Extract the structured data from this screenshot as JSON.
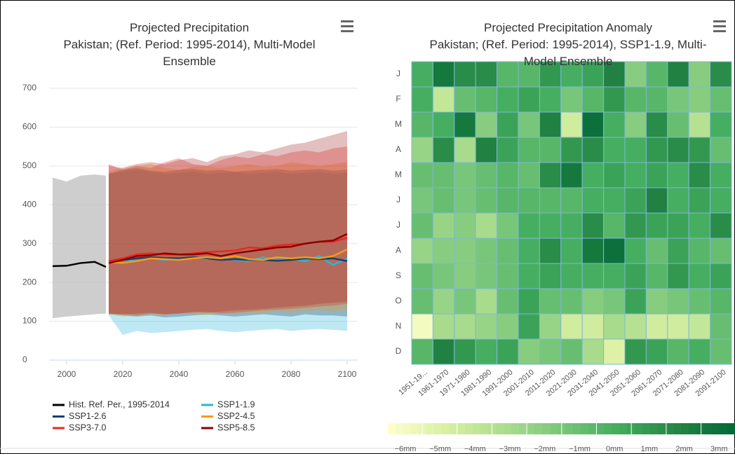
{
  "chart_data": [
    {
      "type": "line",
      "title": "Projected Precipitation",
      "subtitle": "Pakistan; (Ref. Period: 1995-2014), Multi-Model Ensemble",
      "xlim": [
        1994,
        2103
      ],
      "xticks": [
        2000,
        2020,
        2040,
        2060,
        2080,
        2100
      ],
      "ylim": [
        0,
        700
      ],
      "yticks": [
        0,
        100,
        200,
        300,
        400,
        500,
        600,
        700
      ],
      "grid": true,
      "x": [
        2015,
        2020,
        2025,
        2030,
        2035,
        2040,
        2045,
        2050,
        2055,
        2060,
        2065,
        2070,
        2075,
        2080,
        2085,
        2090,
        2095,
        2100
      ],
      "series": [
        {
          "name": "Hist. Ref. Per., 1995-2014",
          "color": "#000000",
          "band_color": "#bdbdbd",
          "x": [
            1995,
            2000,
            2005,
            2010,
            2014
          ],
          "values": [
            242,
            243,
            250,
            253,
            240
          ],
          "low": [
            108,
            112,
            115,
            118,
            120
          ],
          "high": [
            470,
            460,
            475,
            478,
            475
          ]
        },
        {
          "name": "SSP1-1.9",
          "color": "#29b6d9",
          "band_color": "#29b6d9",
          "values": [
            250,
            258,
            255,
            262,
            258,
            262,
            265,
            260,
            262,
            258,
            255,
            265,
            258,
            262,
            255,
            268,
            245,
            262
          ],
          "low": [
            115,
            65,
            75,
            70,
            72,
            75,
            78,
            80,
            75,
            72,
            75,
            78,
            80,
            75,
            78,
            80,
            78,
            75
          ],
          "high": [
            480,
            485,
            490,
            485,
            480,
            482,
            485,
            480,
            482,
            485,
            480,
            482,
            485,
            480,
            482,
            485,
            480,
            482
          ]
        },
        {
          "name": "SSP1-2.6",
          "color": "#1a3e6e",
          "band_color": "#1a3e6e",
          "values": [
            255,
            258,
            262,
            265,
            263,
            262,
            265,
            262,
            258,
            260,
            258,
            258,
            256,
            258,
            262,
            260,
            262,
            255
          ],
          "low": [
            118,
            115,
            112,
            115,
            110,
            112,
            115,
            118,
            115,
            112,
            115,
            118,
            115,
            112,
            118,
            115,
            115,
            112
          ],
          "high": [
            480,
            490,
            495,
            488,
            485,
            490,
            492,
            488,
            490,
            485,
            488,
            490,
            492,
            488,
            490,
            492,
            488,
            490
          ]
        },
        {
          "name": "SSP2-4.5",
          "color": "#f39c12",
          "band_color": "#f39c12",
          "values": [
            252,
            250,
            255,
            262,
            260,
            258,
            262,
            265,
            262,
            268,
            260,
            258,
            265,
            262,
            265,
            262,
            268,
            285
          ],
          "low": [
            118,
            112,
            115,
            118,
            115,
            120,
            118,
            115,
            120,
            118,
            122,
            120,
            125,
            122,
            125,
            128,
            125,
            128
          ],
          "high": [
            485,
            495,
            500,
            505,
            495,
            490,
            498,
            500,
            495,
            500,
            505,
            498,
            500,
            510,
            505,
            500,
            505,
            510
          ]
        },
        {
          "name": "SSP3-7.0",
          "color": "#e8281e",
          "band_color": "#e8281e",
          "values": [
            255,
            262,
            272,
            275,
            272,
            272,
            275,
            278,
            280,
            282,
            290,
            288,
            295,
            298,
            300,
            305,
            305,
            315
          ],
          "low": [
            120,
            118,
            115,
            120,
            118,
            120,
            122,
            125,
            120,
            122,
            125,
            128,
            130,
            132,
            135,
            138,
            140,
            145
          ],
          "high": [
            505,
            490,
            500,
            495,
            510,
            520,
            505,
            500,
            515,
            525,
            520,
            530,
            525,
            535,
            540,
            535,
            545,
            550
          ]
        },
        {
          "name": "SSP5-8.5",
          "color": "#8b0000",
          "band_color": "#a52a2a",
          "values": [
            250,
            258,
            268,
            270,
            275,
            272,
            272,
            275,
            268,
            275,
            280,
            285,
            290,
            292,
            300,
            305,
            308,
            325
          ],
          "low": [
            120,
            118,
            120,
            122,
            118,
            120,
            125,
            122,
            125,
            128,
            130,
            132,
            135,
            138,
            140,
            145,
            148,
            150
          ],
          "high": [
            500,
            495,
            505,
            510,
            505,
            515,
            520,
            510,
            525,
            530,
            540,
            535,
            545,
            555,
            560,
            570,
            580,
            590
          ]
        }
      ]
    },
    {
      "type": "heatmap",
      "title": "Projected Precipitation Anomaly",
      "subtitle": "Pakistan; (Ref. Period: 1995-2014), SSP1-1.9, Multi-Model Ensemble",
      "x": [
        "1951-19...",
        "1961-1970",
        "1971-1980",
        "1981-1990",
        "1991-2000",
        "2001-2010",
        "2011-2020",
        "2021-2030",
        "2031-2040",
        "2041-2050",
        "2051-2060",
        "2061-2070",
        "2071-2080",
        "2081-2090",
        "2091-2100"
      ],
      "y": [
        "J",
        "F",
        "M",
        "A",
        "M",
        "J",
        "J",
        "A",
        "S",
        "O",
        "N",
        "D"
      ],
      "values": [
        [
          0,
          2.5,
          1.5,
          1.5,
          -0.5,
          -0.5,
          1,
          0,
          0.5,
          2,
          -2,
          -0.5,
          2,
          -2,
          1.5
        ],
        [
          0,
          -4,
          -1,
          -0.5,
          0,
          0.5,
          0,
          -1.5,
          -0.5,
          1,
          -0.5,
          -0.5,
          -1.5,
          -2,
          -1
        ],
        [
          -0.5,
          0,
          2.5,
          -2,
          0.5,
          -1.5,
          2,
          -4.5,
          3,
          0,
          -2,
          1.5,
          -1,
          -3.5,
          0
        ],
        [
          -2.5,
          1.5,
          -3,
          2,
          0.5,
          -0.5,
          -0.5,
          1,
          1.5,
          0,
          0,
          1,
          1.5,
          1,
          -1
        ],
        [
          -1,
          -1,
          -1.5,
          -1,
          -0.5,
          -1,
          1.5,
          2.5,
          0,
          0.5,
          0,
          0.5,
          0,
          1.5,
          0
        ],
        [
          -1.5,
          -1,
          -1.5,
          -1,
          -0.5,
          -0.5,
          -0.5,
          -0.5,
          0,
          0,
          0.5,
          2,
          0,
          0.5,
          0
        ],
        [
          -1,
          -2.5,
          -2,
          -3,
          -1.5,
          0,
          0,
          0,
          1.5,
          -0.5,
          1,
          0.5,
          0.5,
          0,
          1.5
        ],
        [
          -2.5,
          -2,
          -2,
          -1.5,
          -1,
          0,
          1.5,
          0,
          2.5,
          3,
          0,
          -1,
          0.5,
          -0.5,
          -1
        ],
        [
          -1,
          -1.5,
          -2,
          -1.5,
          -1,
          0,
          0.5,
          0,
          0,
          0,
          0.5,
          -0.5,
          1,
          0,
          0.5
        ],
        [
          -1,
          -2.5,
          -1.5,
          -3,
          -1,
          0.5,
          -1,
          -1,
          -2,
          -1.5,
          0.5,
          -2,
          -1.5,
          -1,
          -0.5
        ],
        [
          -6,
          -3,
          -3,
          -2.5,
          -2,
          0.5,
          -2.5,
          -4.5,
          -4.5,
          -3,
          -3.5,
          -4.5,
          -4.5,
          -4,
          -1
        ],
        [
          -0.5,
          2,
          1,
          0,
          0.5,
          -2,
          -1.5,
          -1,
          -3,
          -5,
          1,
          0.5,
          -0.5,
          0,
          -1
        ]
      ],
      "clim": [
        -6.5,
        3.5
      ],
      "colorscale": [
        "#ffffcc",
        "#d9f0a3",
        "#addd8e",
        "#78c679",
        "#41ab5d",
        "#238443",
        "#006837"
      ],
      "colorbar_ticks": [
        {
          "value": -6,
          "label": "−6mm"
        },
        {
          "value": -5,
          "label": "−5mm"
        },
        {
          "value": -4,
          "label": "−4mm"
        },
        {
          "value": -3,
          "label": "−3mm"
        },
        {
          "value": -2,
          "label": "−2mm"
        },
        {
          "value": -1,
          "label": "−1mm"
        },
        {
          "value": 0,
          "label": "0mm"
        },
        {
          "value": 1,
          "label": "1mm"
        },
        {
          "value": 2,
          "label": "2mm"
        },
        {
          "value": 3,
          "label": "3mm"
        }
      ]
    }
  ]
}
